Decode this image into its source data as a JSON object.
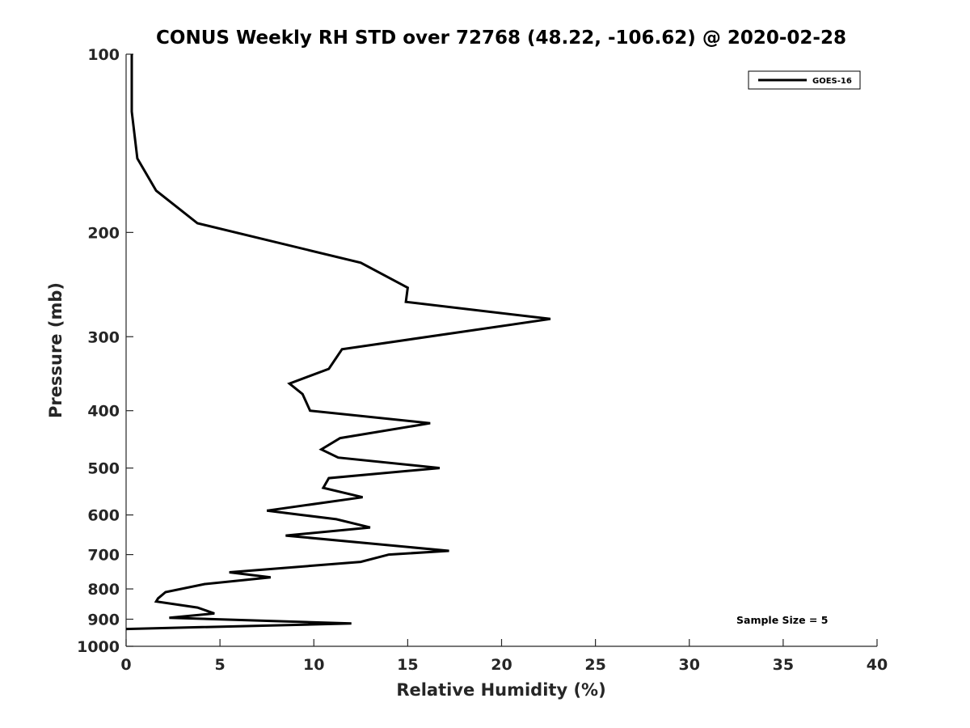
{
  "chart_data": {
    "type": "line",
    "title": "CONUS Weekly RH STD over 72768 (48.22, -106.62) @ 2020-02-28",
    "xlabel": "Relative Humidity (%)",
    "ylabel": "Pressure (mb)",
    "xlim": [
      0,
      40
    ],
    "ylim": [
      100,
      1000
    ],
    "y_scale": "log",
    "y_direction": "reversed",
    "x_ticks": [
      "0",
      "5",
      "10",
      "15",
      "20",
      "25",
      "30",
      "35",
      "40"
    ],
    "y_ticks": [
      "100",
      "200",
      "300",
      "400",
      "500",
      "600",
      "700",
      "800",
      "900",
      "1000"
    ],
    "grid": false,
    "legend_position": "top-right",
    "annotation": "Sample Size = 5",
    "line_color": "#000000",
    "series": [
      {
        "name": "GOES-16",
        "x": [
          0.3,
          0.3,
          0.6,
          1.6,
          3.8,
          12.5,
          15.0,
          14.9,
          22.6,
          11.5,
          10.8,
          8.7,
          9.4,
          9.8,
          16.2,
          11.4,
          10.4,
          11.3,
          16.7,
          10.8,
          10.5,
          12.6,
          7.5,
          11.2,
          13.0,
          8.5,
          17.2,
          14.0,
          12.5,
          5.5,
          7.7,
          4.2,
          2.1,
          1.7,
          1.6,
          3.8,
          4.7,
          2.3,
          12.0,
          0.0
        ],
        "y": [
          100,
          125,
          150,
          170,
          193,
          225,
          248,
          262,
          280,
          315,
          340,
          360,
          375,
          400,
          420,
          445,
          465,
          480,
          500,
          520,
          540,
          560,
          590,
          610,
          630,
          650,
          690,
          700,
          720,
          750,
          765,
          785,
          810,
          830,
          840,
          860,
          880,
          895,
          915,
          935
        ]
      }
    ]
  }
}
